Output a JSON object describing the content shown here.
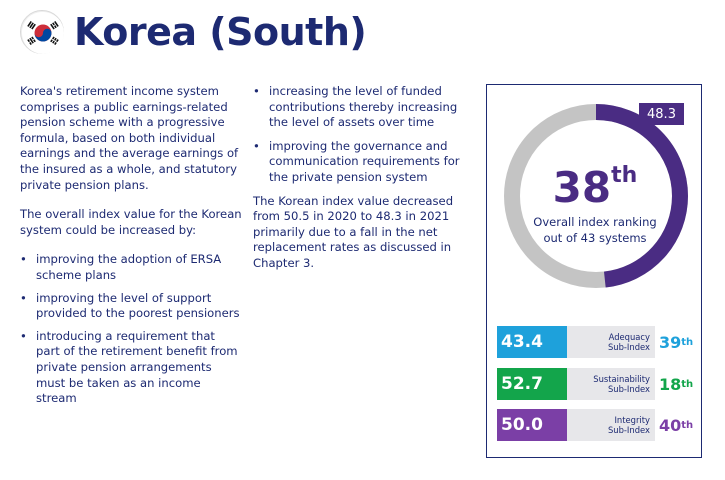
{
  "header": {
    "title": "Korea (South)",
    "flag_icon": "south-korea-flag-icon"
  },
  "column1": {
    "intro": "Korea's retirement income system comprises a public earnings-related pension scheme with a progressive formula, based on both individual earnings and the average earnings of the insured as a whole, and statutory private pension plans.",
    "lead": "The overall index value for the Korean system could be increased by:",
    "bullets": [
      "improving the adoption of ERSA scheme plans",
      "improving the level of support provided to the poorest pensioners",
      "introducing a requirement that part of the retirement benefit from private pension arrangements must be taken as an income stream"
    ]
  },
  "column2": {
    "bullets": [
      "increasing the level of funded contributions thereby increasing the level of assets over time",
      "improving the governance and communication requirements for the private pension system"
    ],
    "closing": "The Korean index value decreased from 50.5 in 2020 to 48.3 in 2021 primarily due to a fall in the net replacement rates as discussed in Chapter 3."
  },
  "bullet_symbol": "•",
  "panel": {
    "overall_value": "48.3",
    "overall_fraction": 0.483,
    "rank_number": "38",
    "rank_suffix": "th",
    "rank_label": "Overall index ranking out of 43 systems",
    "ring_color": "#4a2c83",
    "ring_track_color": "#c4c4c4",
    "subindices": [
      {
        "value": "43.4",
        "label_line1": "Adequacy",
        "label_line2": "Sub-Index",
        "rank": "39",
        "suffix": "th",
        "color": "#1ea1db",
        "fraction": 0.434
      },
      {
        "value": "52.7",
        "label_line1": "Sustainability",
        "label_line2": "Sub-Index",
        "rank": "18",
        "suffix": "th",
        "color": "#13a54b",
        "fraction": 0.527
      },
      {
        "value": "50.0",
        "label_line1": "Integrity",
        "label_line2": "Sub-Index",
        "rank": "40",
        "suffix": "th",
        "color": "#7b3fa6",
        "fraction": 0.5
      }
    ]
  }
}
